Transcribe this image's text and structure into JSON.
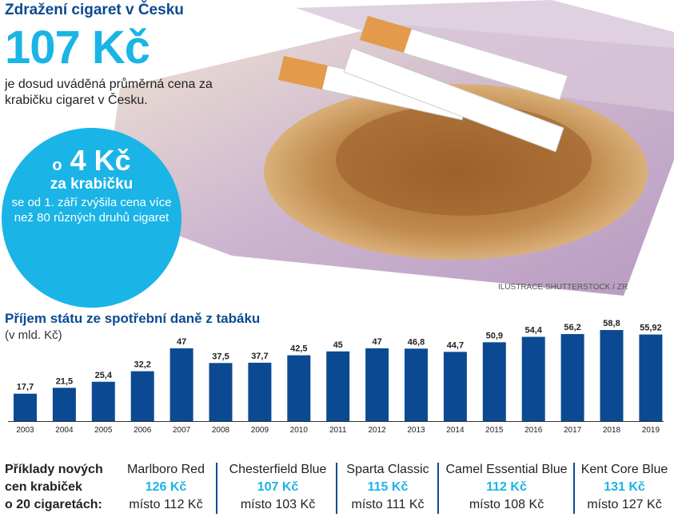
{
  "header": {
    "title": "Zdražení cigaret v Česku",
    "price": "107 Kč",
    "description": "je dosud uváděná průměrná cena za krabičku cigaret v Česku."
  },
  "circle": {
    "prefix": "o",
    "amount": "4 Kč",
    "unit": "za krabičku",
    "text": "se od 1. září zvýšila cena více než 80 různých druhů cigaret"
  },
  "photo_credit": "ILUSTRACE SHUTTERSTOCK / ZR",
  "colors": {
    "dark_blue": "#0b4a92",
    "cyan": "#1ab4e6"
  },
  "chart_data": {
    "type": "bar",
    "title": "Příjem státu ze spotřební daně z tabáku",
    "ylabel": "(v mld. Kč)",
    "categories": [
      "2003",
      "2004",
      "2005",
      "2006",
      "2007",
      "2008",
      "2009",
      "2010",
      "2011",
      "2012",
      "2013",
      "2014",
      "2015",
      "2016",
      "2017",
      "2018",
      "2019"
    ],
    "values": [
      17.7,
      21.5,
      25.4,
      32.2,
      47,
      37.5,
      37.7,
      42.5,
      45,
      47,
      46.8,
      44.7,
      50.9,
      54.4,
      56.2,
      58.8,
      55.92
    ],
    "labels": [
      "17,7",
      "21,5",
      "25,4",
      "32,2",
      "47",
      "37,5",
      "37,7",
      "42,5",
      "45",
      "47",
      "46,8",
      "44,7",
      "50,9",
      "54,4",
      "56,2",
      "58,8",
      "55,92"
    ],
    "ylim": [
      0,
      60
    ],
    "grid": false,
    "color": "#0b4a92"
  },
  "examples": {
    "label": [
      "Příklady nových",
      "cen krabiček",
      "o 20 cigaretách:"
    ],
    "items": [
      {
        "name": "Marlboro Red",
        "price": "126 Kč",
        "old": "místo 112 Kč"
      },
      {
        "name": "Chesterfield Blue",
        "price": "107 Kč",
        "old": "místo 103 Kč"
      },
      {
        "name": "Sparta Classic",
        "price": "115 Kč",
        "old": "místo 111 Kč"
      },
      {
        "name": "Camel Essential Blue",
        "price": "112 Kč",
        "old": "místo 108 Kč"
      },
      {
        "name": "Kent Core Blue",
        "price": "131 Kč",
        "old": "místo 127 Kč"
      }
    ]
  }
}
